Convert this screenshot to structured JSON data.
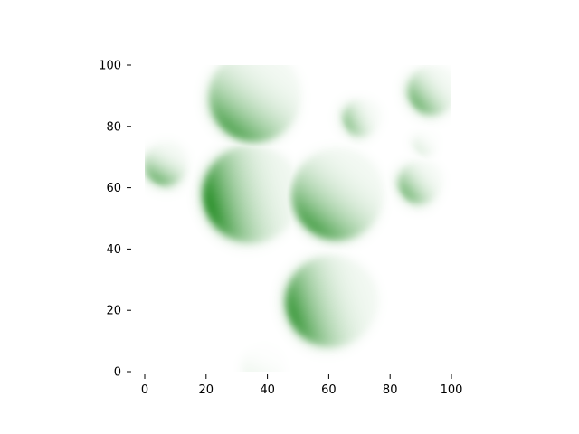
{
  "chart_data": {
    "type": "heatmap",
    "colormap": "Greens",
    "colors": {
      "background": "#ffffff",
      "low": "#ffffff",
      "high": "#007a00"
    },
    "xlim": [
      0,
      100
    ],
    "ylim": [
      0,
      100
    ],
    "grid": false,
    "spines": false,
    "x_ticks": [
      0,
      20,
      40,
      60,
      80,
      100
    ],
    "y_ticks": [
      0,
      20,
      40,
      60,
      80,
      100
    ],
    "x_tick_labels": [
      "0",
      "20",
      "40",
      "60",
      "80",
      "100"
    ],
    "y_tick_labels": [
      "0",
      "20",
      "40",
      "60",
      "80",
      "100"
    ],
    "blobs": [
      {
        "cx": 36,
        "cy": 90,
        "r": 15,
        "peak_x": 25,
        "peak_y": 76,
        "intensity": 0.78
      },
      {
        "cx": 35,
        "cy": 58,
        "r": 16,
        "peak_x": 20,
        "peak_y": 54,
        "intensity": 1.0
      },
      {
        "cx": 63,
        "cy": 58,
        "r": 15,
        "peak_x": 50,
        "peak_y": 43,
        "intensity": 0.82
      },
      {
        "cx": 61,
        "cy": 23,
        "r": 15,
        "peak_x": 43,
        "peak_y": 17,
        "intensity": 0.9
      },
      {
        "cx": 7,
        "cy": 68,
        "r": 7,
        "peak_x": 4,
        "peak_y": 63,
        "intensity": 0.7
      },
      {
        "cx": 71,
        "cy": 83,
        "r": 6,
        "peak_x": 67,
        "peak_y": 81,
        "intensity": 0.55
      },
      {
        "cx": 94,
        "cy": 92,
        "r": 8,
        "peak_x": 88,
        "peak_y": 87,
        "intensity": 0.68
      },
      {
        "cx": 90,
        "cy": 62,
        "r": 7,
        "peak_x": 85,
        "peak_y": 58,
        "intensity": 0.65
      },
      {
        "cx": 92,
        "cy": 75,
        "r": 4,
        "peak_x": 91,
        "peak_y": 74,
        "intensity": 0.15
      },
      {
        "cx": 39,
        "cy": 2,
        "r": 7,
        "peak_x": 38,
        "peak_y": 0,
        "intensity": 0.1
      }
    ]
  }
}
